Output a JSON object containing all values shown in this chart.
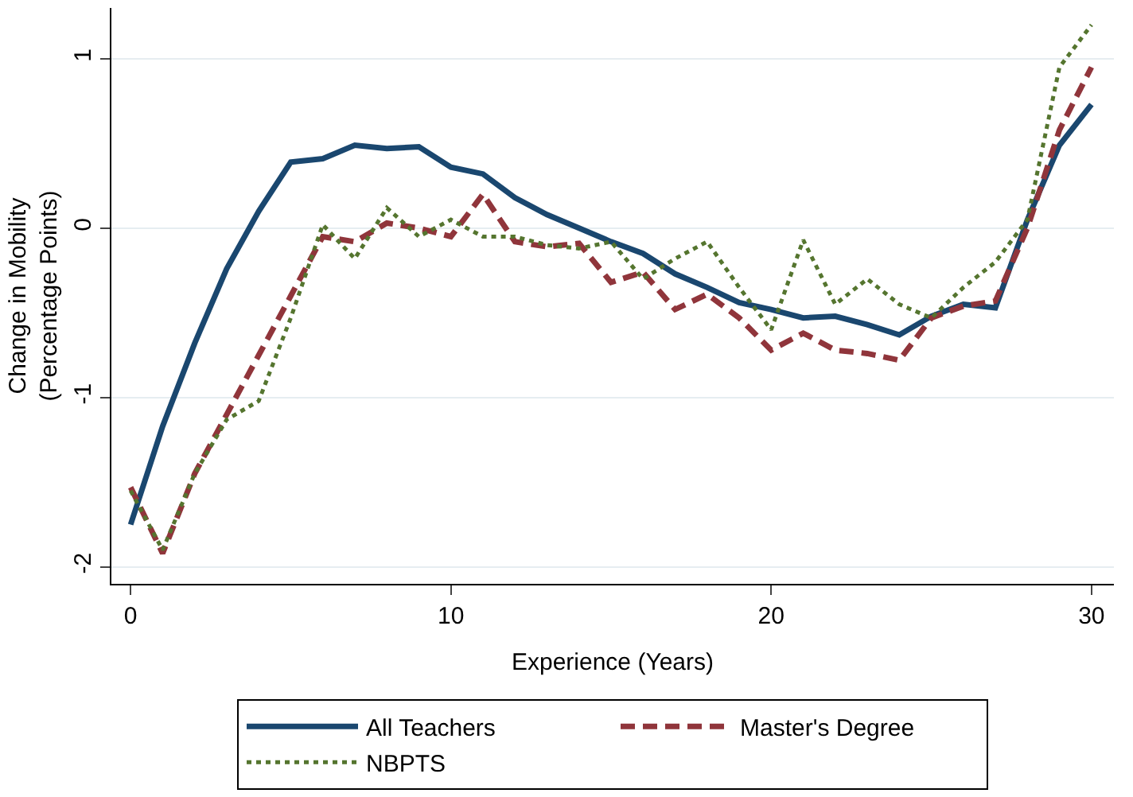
{
  "chart_data": {
    "type": "line",
    "xlabel": "Experience (Years)",
    "ylabel": "Change in Mobility\n(Percentage Points)",
    "x": [
      0,
      1,
      2,
      3,
      4,
      5,
      6,
      7,
      8,
      9,
      10,
      11,
      12,
      13,
      14,
      15,
      16,
      17,
      18,
      19,
      20,
      21,
      22,
      23,
      24,
      25,
      26,
      27,
      28,
      29,
      30
    ],
    "series": [
      {
        "name": "All Teachers",
        "color": "#1a476f",
        "line_style": "solid",
        "values": [
          -1.75,
          -1.17,
          -0.68,
          -0.24,
          0.1,
          0.39,
          0.41,
          0.49,
          0.47,
          0.48,
          0.36,
          0.32,
          0.18,
          0.08,
          0.0,
          -0.08,
          -0.15,
          -0.27,
          -0.35,
          -0.44,
          -0.48,
          -0.53,
          -0.52,
          -0.57,
          -0.63,
          -0.52,
          -0.45,
          -0.47,
          0.05,
          0.49,
          0.73
        ]
      },
      {
        "name": "Master's Degree",
        "color": "#90353b",
        "line_style": "dashed",
        "values": [
          -1.53,
          -1.92,
          -1.45,
          -1.1,
          -0.75,
          -0.4,
          -0.05,
          -0.08,
          0.03,
          0.0,
          -0.05,
          0.2,
          -0.08,
          -0.11,
          -0.09,
          -0.32,
          -0.26,
          -0.48,
          -0.39,
          -0.53,
          -0.72,
          -0.62,
          -0.72,
          -0.74,
          -0.78,
          -0.53,
          -0.46,
          -0.43,
          0.0,
          0.58,
          0.95
        ]
      },
      {
        "name": "NBPTS",
        "color": "#55752f",
        "line_style": "dotted",
        "values": [
          -1.55,
          -1.9,
          -1.45,
          -1.13,
          -1.02,
          -0.53,
          0.02,
          -0.18,
          0.12,
          -0.05,
          0.05,
          -0.05,
          -0.05,
          -0.1,
          -0.12,
          -0.08,
          -0.3,
          -0.18,
          -0.08,
          -0.35,
          -0.6,
          -0.07,
          -0.45,
          -0.3,
          -0.45,
          -0.53,
          -0.35,
          -0.2,
          0.05,
          0.95,
          1.2
        ]
      }
    ],
    "xlim": [
      -0.6,
      30.7
    ],
    "xticks": [
      0,
      10,
      20,
      30
    ],
    "ylim": [
      -2.1,
      1.3
    ],
    "yticks": [
      -2,
      -1,
      0,
      1
    ],
    "grid": "y",
    "legend": "bottom",
    "marker": "none"
  }
}
